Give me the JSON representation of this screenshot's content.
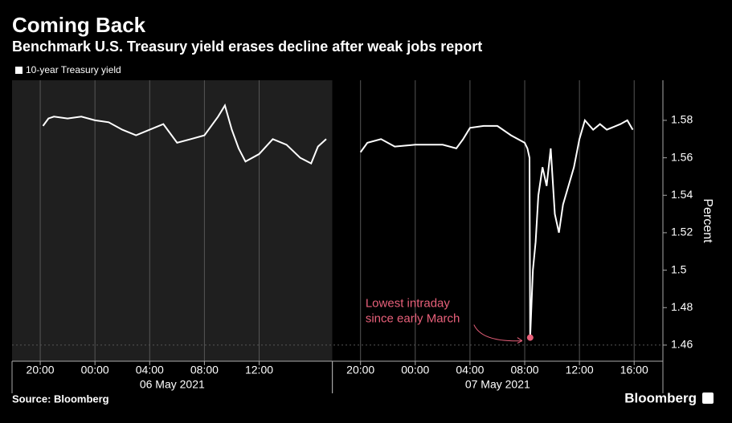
{
  "title": "Coming Back",
  "subtitle": "Benchmark U.S. Treasury yield erases decline after weak jobs report",
  "source": "Source: Bloomberg",
  "brand": "Bloomberg",
  "chart_data": [
    {
      "type": "line",
      "xlabel": "06 May 2021",
      "background": "#1f1f1f",
      "grid": true,
      "xlim": [
        -6.06,
        17.35
      ],
      "ylim": [
        1.4514,
        1.6014
      ],
      "xticks": [
        {
          "value": -4,
          "label": "20:00"
        },
        {
          "value": 0,
          "label": "00:00"
        },
        {
          "value": 4,
          "label": "04:00"
        },
        {
          "value": 8,
          "label": "08:00"
        },
        {
          "value": 12,
          "label": "12:00"
        }
      ],
      "x": [
        -3.8,
        -3.4,
        -3.0,
        -2.0,
        -1.0,
        0,
        1.0,
        2.0,
        3.0,
        4.0,
        5.0,
        6.0,
        7.0,
        8.0,
        9.0,
        9.5,
        10.0,
        10.5,
        11.0,
        12.0,
        13.0,
        14.0,
        15.0,
        15.8,
        16.3,
        16.9
      ],
      "series": [
        {
          "name": "10-year Treasury yield",
          "color": "#ffffff",
          "values": [
            1.577,
            1.581,
            1.582,
            1.581,
            1.582,
            1.58,
            1.579,
            1.575,
            1.572,
            1.575,
            1.578,
            1.568,
            1.57,
            1.572,
            1.582,
            1.588,
            1.575,
            1.565,
            1.558,
            1.562,
            1.57,
            1.567,
            1.56,
            1.557,
            1.566,
            1.57
          ]
        }
      ]
    },
    {
      "type": "line",
      "xlabel": "07 May 2021",
      "background": "#000000",
      "grid": true,
      "ylabel": "Percent",
      "xlim": [
        -6.06,
        18.1
      ],
      "ylim": [
        1.4514,
        1.6014
      ],
      "xticks": [
        {
          "value": -4,
          "label": "20:00"
        },
        {
          "value": 0,
          "label": "00:00"
        },
        {
          "value": 4,
          "label": "04:00"
        },
        {
          "value": 8,
          "label": "08:00"
        },
        {
          "value": 12,
          "label": "12:00"
        },
        {
          "value": 16,
          "label": "16:00"
        }
      ],
      "yticks": [
        1.46,
        1.48,
        1.5,
        1.52,
        1.54,
        1.56,
        1.58
      ],
      "x": [
        -4,
        -3.5,
        -2.5,
        -1.5,
        0,
        2,
        3,
        3.5,
        4,
        5,
        6,
        7,
        8,
        8.2,
        8.35,
        8.4,
        8.6,
        8.8,
        9.0,
        9.3,
        9.6,
        9.9,
        10.2,
        10.5,
        10.8,
        11.2,
        11.6,
        12,
        12.4,
        13,
        13.5,
        14,
        15,
        15.5,
        15.9
      ],
      "series": [
        {
          "name": "10-year Treasury yield",
          "color": "#ffffff",
          "values": [
            1.563,
            1.568,
            1.57,
            1.566,
            1.567,
            1.567,
            1.565,
            1.57,
            1.576,
            1.577,
            1.577,
            1.572,
            1.568,
            1.565,
            1.56,
            1.464,
            1.5,
            1.515,
            1.54,
            1.555,
            1.545,
            1.565,
            1.53,
            1.52,
            1.535,
            1.545,
            1.555,
            1.57,
            1.58,
            1.575,
            1.578,
            1.575,
            1.578,
            1.58,
            1.575
          ]
        }
      ],
      "annotation": {
        "text": [
          "Lowest intraday",
          "since early March"
        ],
        "x": 8.4,
        "y": 1.464,
        "color": "#e8607a"
      }
    }
  ]
}
